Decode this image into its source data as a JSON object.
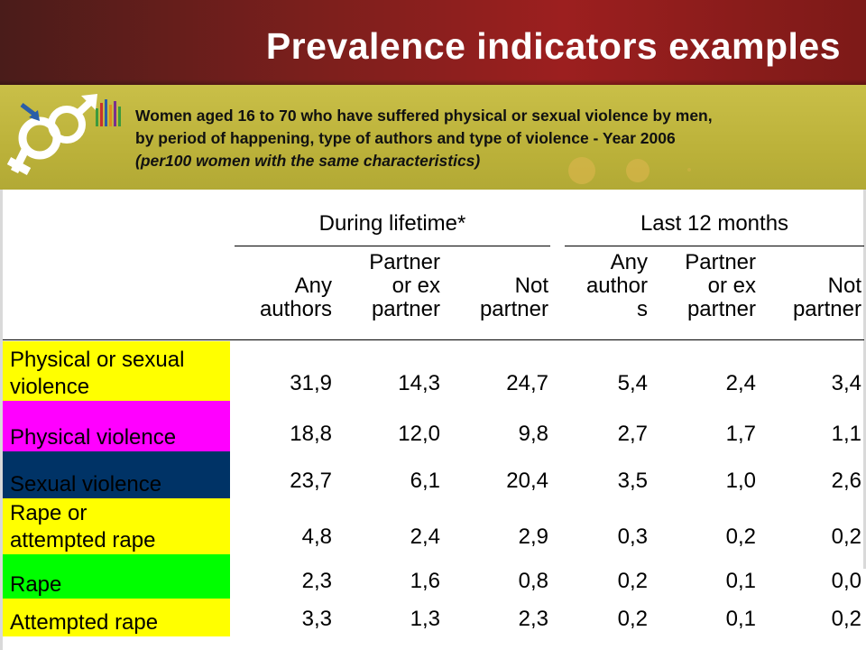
{
  "header": {
    "title": "Prevalence indicators examples"
  },
  "subtitle": {
    "line1": "Women aged 16 to 70 who have suffered physical or sexual violence by men,",
    "line2": "by period of happening, type of authors and type of violence - Year 2006",
    "line3": "(per100 women with the same characteristics)"
  },
  "logo": {
    "icon": "gender-symbols-logo-icon"
  },
  "table": {
    "groups": [
      "During lifetime*",
      "Last 12 months"
    ],
    "columns": [
      [
        "Any",
        "authors"
      ],
      [
        "Partner",
        "or ex",
        "partner"
      ],
      [
        "Not",
        "partner"
      ],
      [
        "Any",
        "author",
        "s"
      ],
      [
        "Partner",
        "or ex",
        "partner"
      ],
      [
        "Not",
        "partner"
      ]
    ],
    "rows": [
      {
        "label": [
          "Physical or sexual",
          "violence"
        ],
        "color": "#ffff00",
        "text_color": "#000000",
        "values": [
          "31,9",
          "14,3",
          "24,7",
          "5,4",
          "2,4",
          "3,4"
        ]
      },
      {
        "label": [
          "Physical violence"
        ],
        "color": "#ff00ff",
        "text_color": "#000000",
        "values": [
          "18,8",
          "12,0",
          "9,8",
          "2,7",
          "1,7",
          "1,1"
        ]
      },
      {
        "label": [
          "Sexual violence"
        ],
        "color": "#003366",
        "text_color": "#000000",
        "values": [
          "23,7",
          "6,1",
          "20,4",
          "3,5",
          "1,0",
          "2,6"
        ]
      },
      {
        "label": [
          "Rape or",
          "attempted rape"
        ],
        "color": "#ffff00",
        "text_color": "#000000",
        "values": [
          "4,8",
          "2,4",
          "2,9",
          "0,3",
          "0,2",
          "0,2"
        ]
      },
      {
        "label": [
          "Rape"
        ],
        "color": "#00ff00",
        "text_color": "#000000",
        "values": [
          "2,3",
          "1,6",
          "0,8",
          "0,2",
          "0,1",
          "0,0"
        ]
      },
      {
        "label": [
          "Attempted rape"
        ],
        "color": "#ffff00",
        "text_color": "#000000",
        "values": [
          "3,3",
          "1,3",
          "2,3",
          "0,2",
          "0,1",
          "0,2"
        ]
      }
    ]
  }
}
